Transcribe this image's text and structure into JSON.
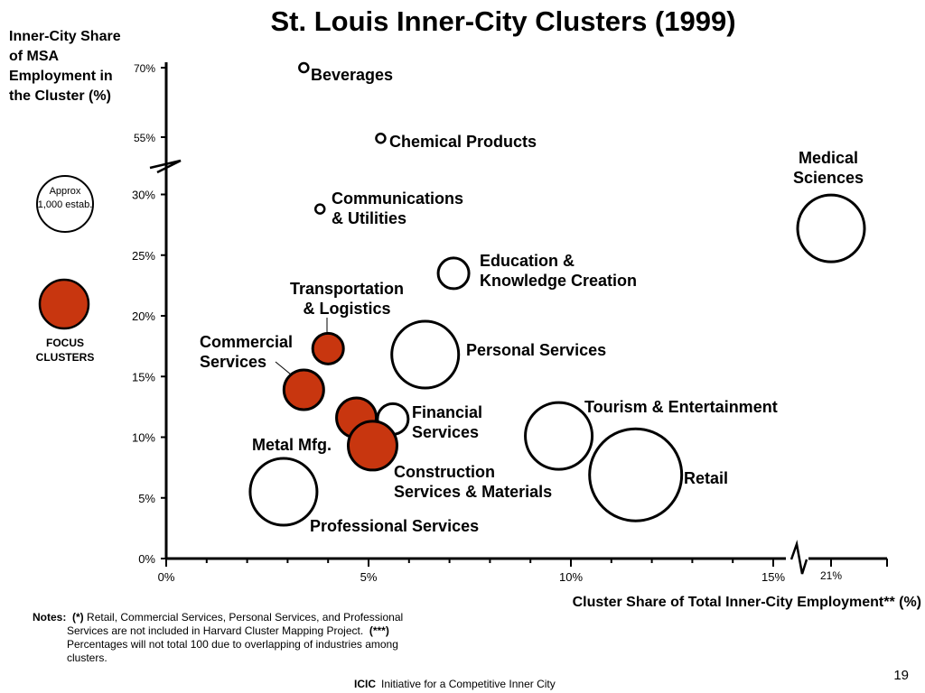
{
  "title": "St. Louis Inner-City Clusters (1999)",
  "chart_data": {
    "type": "scatter",
    "title": "St. Louis Inner-City Clusters (1999)",
    "xlabel": "Cluster Share of Total Inner-City Employment** (%)",
    "ylabel": "Inner-City Share of MSA Employment in the Cluster (%)",
    "xlim": [
      0,
      21
    ],
    "ylim": [
      0,
      70
    ],
    "x_ticks": [
      "0%",
      "5%",
      "10%",
      "15%",
      "21%"
    ],
    "y_ticks": [
      "0%",
      "5%",
      "10%",
      "15%",
      "20%",
      "25%",
      "30%",
      "55%",
      "70%"
    ],
    "axis_breaks": {
      "x": "between 15% and 21%",
      "y": "between 30% and 55%"
    },
    "grid": false,
    "legend": {
      "size_reference": "Approx 1,000 estab.",
      "focus_label": "FOCUS CLUSTERS",
      "focus_color": "#c8360f"
    },
    "points": [
      {
        "label": "Beverages",
        "x": 3.4,
        "y": 70,
        "size": "tiny",
        "focus": false
      },
      {
        "label": "Chemical Products",
        "x": 5.3,
        "y": 54.5,
        "size": "tiny",
        "focus": false
      },
      {
        "label": "Communications & Utilities",
        "x": 3.8,
        "y": 28.8,
        "size": "tiny",
        "focus": false
      },
      {
        "label": "Education & Knowledge Creation",
        "x": 7.1,
        "y": 23.5,
        "size": "small",
        "focus": false
      },
      {
        "label": "Medical Sciences",
        "x": 21,
        "y": 27.2,
        "size": "large",
        "focus": false
      },
      {
        "label": "Transportation & Logistics",
        "x": 4.0,
        "y": 17.3,
        "size": "small",
        "focus": true
      },
      {
        "label": "Personal Services",
        "x": 6.4,
        "y": 16.8,
        "size": "large",
        "focus": false
      },
      {
        "label": "Commercial Services",
        "x": 3.4,
        "y": 13.9,
        "size": "medium",
        "focus": true
      },
      {
        "label": "Financial Services",
        "x": 5.6,
        "y": 11.5,
        "size": "small",
        "focus": false
      },
      {
        "label": "Metal Mfg.",
        "x": 4.7,
        "y": 11.6,
        "size": "medium",
        "focus": true
      },
      {
        "label": "Construction Services & Materials",
        "x": 5.1,
        "y": 9.3,
        "size": "medium-large",
        "focus": true
      },
      {
        "label": "Tourism & Entertainment",
        "x": 9.7,
        "y": 10.1,
        "size": "large",
        "focus": false
      },
      {
        "label": "Retail",
        "x": 11.6,
        "y": 6.9,
        "size": "x-large",
        "focus": false
      },
      {
        "label": "Professional Services",
        "x": 2.9,
        "y": 5.5,
        "size": "large",
        "focus": false
      }
    ]
  },
  "legend": {
    "size_label": "Approx 1,000 estab.",
    "focus_label": "FOCUS CLUSTERS"
  },
  "notes": {
    "title": "Notes:",
    "line1_mark": "(*)",
    "line1_text": " Retail, Commercial Services, Personal Services, and Professional",
    "line2_text": "Services are not included in Harvard Cluster Mapping Project.",
    "line2_mark": "(***)",
    "line3_text": "Percentages will not total 100 due to overlapping of industries among",
    "line4_text": "clusters."
  },
  "page_number": "19",
  "footer": {
    "brand": "ICIC",
    "text": "Initiative for a Competitive Inner City"
  }
}
